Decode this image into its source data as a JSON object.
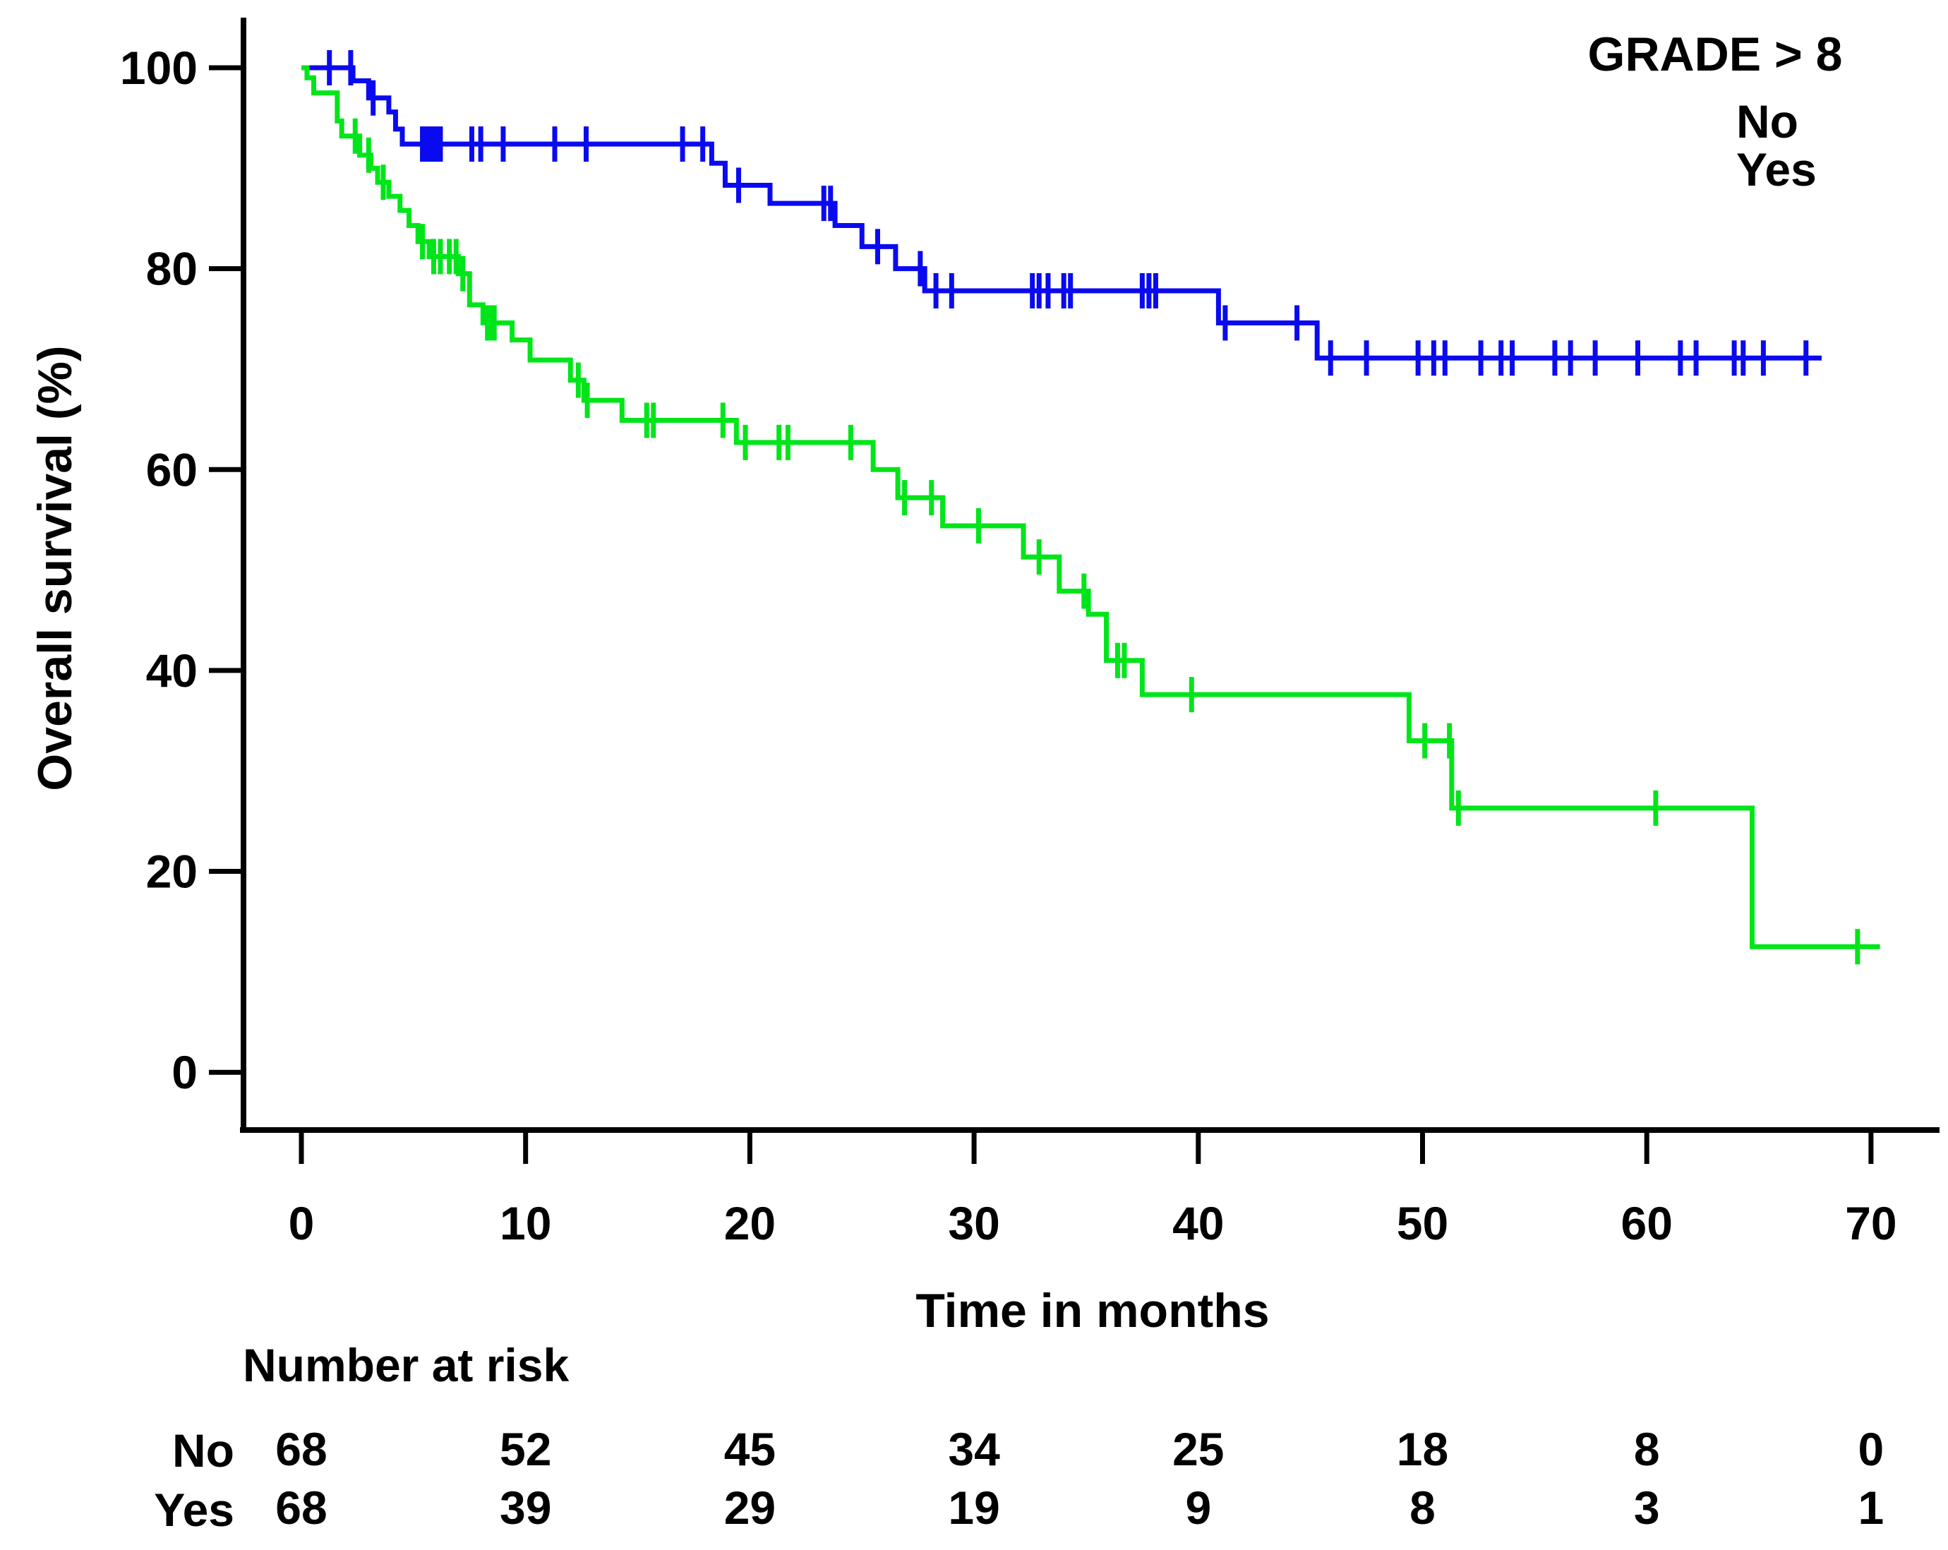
{
  "chart_data": {
    "type": "line",
    "subtype": "kaplan-meier-step",
    "title": "",
    "xlabel": "Time in months",
    "ylabel": "Overall survival (%)",
    "xlim": [
      0,
      70
    ],
    "ylim": [
      0,
      100
    ],
    "xticks": [
      0,
      10,
      20,
      30,
      40,
      50,
      60,
      70
    ],
    "yticks": [
      0,
      20,
      40,
      60,
      80,
      100
    ],
    "grid": "off",
    "legend": {
      "title": "GRADE > 8",
      "position": "top-right",
      "entries": [
        {
          "label": "No",
          "color": "#0a0af0"
        },
        {
          "label": "Yes",
          "color": "#00e51a"
        }
      ]
    },
    "series": [
      {
        "name": "No",
        "color": "#0a0af0",
        "steps": [
          [
            0,
            100
          ],
          [
            2.3,
            98.7
          ],
          [
            3.0,
            97.0
          ],
          [
            3.9,
            95.6
          ],
          [
            4.2,
            93.9
          ],
          [
            4.5,
            92.4
          ],
          [
            18.3,
            90.5
          ],
          [
            18.9,
            88.3
          ],
          [
            20.9,
            86.5
          ],
          [
            23.8,
            84.3
          ],
          [
            25.0,
            82.2
          ],
          [
            26.5,
            80.0
          ],
          [
            27.8,
            77.8
          ],
          [
            40.9,
            74.6
          ],
          [
            45.3,
            71.1
          ]
        ],
        "end_time": 67.8,
        "censors": [
          [
            1.25,
            100
          ],
          [
            2.2,
            100
          ],
          [
            3.2,
            97.0
          ],
          [
            5.4,
            92.4
          ],
          [
            5.6,
            92.4
          ],
          [
            5.8,
            92.4
          ],
          [
            6.0,
            92.4
          ],
          [
            6.2,
            92.4
          ],
          [
            7.6,
            92.4
          ],
          [
            8.0,
            92.4
          ],
          [
            9.0,
            92.4
          ],
          [
            11.3,
            92.4
          ],
          [
            12.7,
            92.4
          ],
          [
            17.0,
            92.4
          ],
          [
            17.9,
            92.4
          ],
          [
            19.5,
            88.3
          ],
          [
            23.3,
            86.5
          ],
          [
            23.6,
            86.5
          ],
          [
            25.7,
            82.2
          ],
          [
            27.6,
            80.0
          ],
          [
            28.3,
            77.8
          ],
          [
            29.0,
            77.8
          ],
          [
            32.6,
            77.8
          ],
          [
            32.9,
            77.8
          ],
          [
            33.3,
            77.8
          ],
          [
            34.0,
            77.8
          ],
          [
            34.3,
            77.8
          ],
          [
            37.5,
            77.8
          ],
          [
            37.8,
            77.8
          ],
          [
            38.1,
            77.8
          ],
          [
            41.2,
            74.6
          ],
          [
            44.4,
            74.6
          ],
          [
            45.9,
            71.1
          ],
          [
            47.5,
            71.1
          ],
          [
            49.8,
            71.1
          ],
          [
            50.5,
            71.1
          ],
          [
            51.0,
            71.1
          ],
          [
            52.6,
            71.1
          ],
          [
            53.5,
            71.1
          ],
          [
            54.0,
            71.1
          ],
          [
            55.9,
            71.1
          ],
          [
            56.6,
            71.1
          ],
          [
            57.7,
            71.1
          ],
          [
            59.6,
            71.1
          ],
          [
            61.5,
            71.1
          ],
          [
            62.2,
            71.1
          ],
          [
            63.9,
            71.1
          ],
          [
            64.3,
            71.1
          ],
          [
            65.2,
            71.1
          ],
          [
            67.1,
            71.1
          ]
        ]
      },
      {
        "name": "Yes",
        "color": "#00e51a",
        "steps": [
          [
            0,
            100
          ],
          [
            0.25,
            99.0
          ],
          [
            0.55,
            97.5
          ],
          [
            1.6,
            94.7
          ],
          [
            1.8,
            93.2
          ],
          [
            2.6,
            91.3
          ],
          [
            3.1,
            90.0
          ],
          [
            3.4,
            88.6
          ],
          [
            3.9,
            87.2
          ],
          [
            4.4,
            85.8
          ],
          [
            4.8,
            84.3
          ],
          [
            5.2,
            82.7
          ],
          [
            5.7,
            81.2
          ],
          [
            7.0,
            79.5
          ],
          [
            7.5,
            76.4
          ],
          [
            8.1,
            74.6
          ],
          [
            9.4,
            72.9
          ],
          [
            10.2,
            70.9
          ],
          [
            12.0,
            68.9
          ],
          [
            12.6,
            66.9
          ],
          [
            14.3,
            64.9
          ],
          [
            19.4,
            62.7
          ],
          [
            25.5,
            60.0
          ],
          [
            26.6,
            57.2
          ],
          [
            28.6,
            54.4
          ],
          [
            32.2,
            51.3
          ],
          [
            33.8,
            47.9
          ],
          [
            35.1,
            45.6
          ],
          [
            35.9,
            41.0
          ],
          [
            37.5,
            37.6
          ],
          [
            49.4,
            33.0
          ],
          [
            51.3,
            26.3
          ],
          [
            64.7,
            12.5
          ]
        ],
        "end_time": 70.4,
        "censors": [
          [
            2.4,
            93.2
          ],
          [
            3.0,
            91.3
          ],
          [
            3.65,
            88.6
          ],
          [
            5.4,
            82.7
          ],
          [
            5.9,
            81.2
          ],
          [
            6.2,
            81.2
          ],
          [
            6.6,
            81.2
          ],
          [
            6.9,
            81.2
          ],
          [
            7.2,
            79.5
          ],
          [
            8.3,
            74.6
          ],
          [
            8.45,
            74.6
          ],
          [
            8.6,
            74.6
          ],
          [
            12.35,
            68.9
          ],
          [
            12.75,
            66.9
          ],
          [
            15.4,
            64.9
          ],
          [
            15.7,
            64.9
          ],
          [
            18.8,
            64.9
          ],
          [
            19.8,
            62.7
          ],
          [
            21.3,
            62.7
          ],
          [
            21.7,
            62.7
          ],
          [
            24.5,
            62.7
          ],
          [
            26.9,
            57.2
          ],
          [
            28.1,
            57.2
          ],
          [
            30.2,
            54.4
          ],
          [
            32.9,
            51.3
          ],
          [
            34.9,
            47.9
          ],
          [
            36.4,
            41.0
          ],
          [
            36.7,
            41.0
          ],
          [
            39.7,
            37.6
          ],
          [
            50.1,
            33.0
          ],
          [
            51.2,
            33.0
          ],
          [
            51.6,
            26.3
          ],
          [
            60.4,
            26.3
          ],
          [
            69.4,
            12.5
          ]
        ]
      }
    ],
    "risk_table": {
      "header": "Number at risk",
      "times": [
        0,
        10,
        20,
        30,
        40,
        50,
        60,
        70
      ],
      "rows": [
        {
          "label": "No",
          "values": [
            68,
            52,
            45,
            34,
            25,
            18,
            8,
            0
          ]
        },
        {
          "label": "Yes",
          "values": [
            68,
            39,
            29,
            19,
            9,
            8,
            3,
            1
          ]
        }
      ]
    }
  }
}
